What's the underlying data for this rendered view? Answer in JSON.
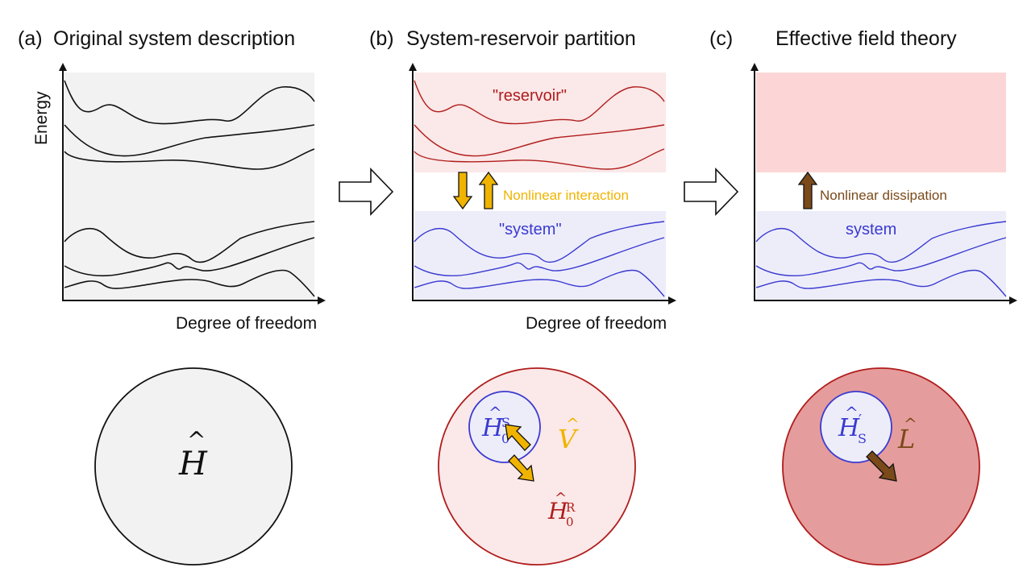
{
  "panels": {
    "a": {
      "letter": "(a)",
      "title": "Original system description"
    },
    "b": {
      "letter": "(b)",
      "title": "System-reservoir partition"
    },
    "c": {
      "letter": "(c)",
      "title": "Effective field theory"
    }
  },
  "axes": {
    "y_label": "Energy",
    "x_label_a": "Degree of freedom",
    "x_label_b": "Degree of freedom"
  },
  "regions": {
    "reservoir_label": "\"reservoir\"",
    "system_label_b": "\"system\"",
    "system_label_c": "system"
  },
  "arrows": {
    "nonlinear_interaction": "Nonlinear interaction",
    "nonlinear_dissipation": "Nonlinear dissipation"
  },
  "math": {
    "H": "H",
    "H0": "H",
    "sub_0": "0",
    "sup_S": "S",
    "sup_R": "R",
    "V": "V",
    "Hs_prime": "H",
    "sub_S": "S",
    "prime": "′",
    "L": "L",
    "hat": "^"
  },
  "colors": {
    "panel_a_bg": "#f2f2f2",
    "reservoir_bg": "#fbe8e8",
    "reservoir_bg_c": "#fcd6d6",
    "system_bg": "#ededfa",
    "reservoir_line": "#b01c1c",
    "system_line": "#3a3ad0",
    "interaction": "#f0b400",
    "dissipation": "#7a4a1a",
    "outer_circle_c": "#e59c9c"
  }
}
